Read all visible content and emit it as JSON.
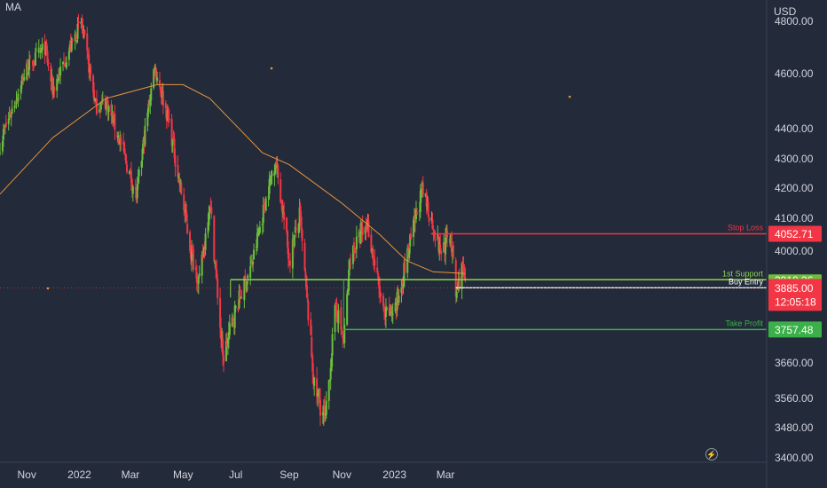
{
  "chart_data": {
    "type": "candlestick",
    "title": "",
    "indicator_label": "MA",
    "currency_label": "USD",
    "ylim": [
      3400,
      4900
    ],
    "y_ticks": [
      3400,
      3480,
      3560,
      3660,
      3800,
      3900,
      4000,
      4100,
      4200,
      4300,
      4400,
      4600,
      4800
    ],
    "y_tick_labels": [
      "3400.00",
      "3480.00",
      "3560.00",
      "3660.00",
      "",
      "",
      "4000.00",
      "4100.00",
      "4200.00",
      "4300.00",
      "4400.00",
      "4600.00",
      "4800.00"
    ],
    "x_ticks": [
      "Nov",
      "2022",
      "Mar",
      "May",
      "Jul",
      "Sep",
      "Nov",
      "2023",
      "Mar"
    ],
    "price_path": [
      [
        "2021-10-01",
        4350
      ],
      [
        "2021-10-15",
        4470
      ],
      [
        "2021-11-01",
        4620
      ],
      [
        "2021-11-22",
        4700
      ],
      [
        "2021-12-01",
        4540
      ],
      [
        "2021-12-15",
        4650
      ],
      [
        "2022-01-03",
        4795
      ],
      [
        "2022-01-20",
        4480
      ],
      [
        "2022-02-01",
        4500
      ],
      [
        "2022-02-20",
        4330
      ],
      [
        "2022-03-08",
        4170
      ],
      [
        "2022-03-29",
        4630
      ],
      [
        "2022-04-15",
        4420
      ],
      [
        "2022-05-10",
        4000
      ],
      [
        "2022-05-20",
        3900
      ],
      [
        "2022-06-01",
        4160
      ],
      [
        "2022-06-16",
        3670
      ],
      [
        "2022-07-01",
        3820
      ],
      [
        "2022-07-20",
        3960
      ],
      [
        "2022-08-16",
        4300
      ],
      [
        "2022-09-01",
        3970
      ],
      [
        "2022-09-13",
        4110
      ],
      [
        "2022-09-30",
        3590
      ],
      [
        "2022-10-13",
        3500
      ],
      [
        "2022-10-25",
        3830
      ],
      [
        "2022-11-03",
        3720
      ],
      [
        "2022-11-11",
        3990
      ],
      [
        "2022-12-01",
        4080
      ],
      [
        "2022-12-20",
        3790
      ],
      [
        "2023-01-03",
        3830
      ],
      [
        "2023-02-02",
        4190
      ],
      [
        "2023-02-23",
        4000
      ],
      [
        "2023-03-07",
        4050
      ],
      [
        "2023-03-13",
        3860
      ],
      [
        "2023-03-20",
        3950
      ],
      [
        "2023-03-24",
        3885
      ]
    ],
    "moving_average": [
      [
        "2021-10-01",
        4180
      ],
      [
        "2021-12-01",
        4370
      ],
      [
        "2022-02-01",
        4510
      ],
      [
        "2022-04-01",
        4560
      ],
      [
        "2022-05-01",
        4560
      ],
      [
        "2022-06-01",
        4510
      ],
      [
        "2022-08-01",
        4320
      ],
      [
        "2022-09-01",
        4280
      ],
      [
        "2022-11-01",
        4150
      ],
      [
        "2022-12-15",
        4050
      ],
      [
        "2023-01-15",
        3970
      ],
      [
        "2023-02-15",
        3935
      ],
      [
        "2023-03-24",
        3930
      ]
    ],
    "levels": [
      {
        "name": "Stop Loss",
        "value": 4052.71,
        "value_label": "4052.71",
        "color": "#f23645",
        "from": "2023-02-12"
      },
      {
        "name": "1st Support",
        "value": 3910.36,
        "value_label": "3910.36",
        "color": "#8bd64a",
        "from": "2022-06-25"
      },
      {
        "name": "Buy Entry",
        "value": 3885.0,
        "value_label": "",
        "color": "#ffffff",
        "from": "2023-03-13"
      },
      {
        "name": "Take Profit",
        "value": 3757.48,
        "value_label": "3757.48",
        "color": "#3bb049",
        "from": "2022-11-03"
      }
    ],
    "current_price": {
      "value": 3885.0,
      "value_label": "3885.00",
      "countdown": "12:05:18",
      "color": "#f23645"
    },
    "colors": {
      "background": "#232a3a",
      "up": "#6cbf3c",
      "down": "#f23645",
      "ma": "#e8953a",
      "grid": "#2f3648",
      "text": "#d1d4dc",
      "support_tag": "#6cbf3c",
      "take_profit_tag": "#3bb049"
    }
  }
}
